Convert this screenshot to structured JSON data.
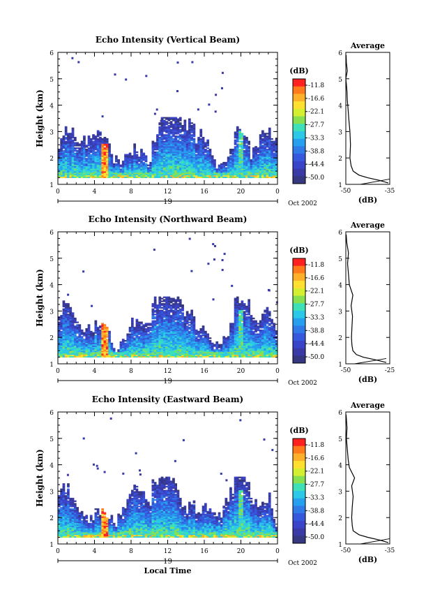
{
  "chart_data": [
    {
      "type": "heatmap",
      "title": "Echo Intensity (Vertical Beam)",
      "ylabel": "Height (km)",
      "xlabel": "",
      "xlim": [
        0,
        24
      ],
      "ylim": [
        1,
        6
      ],
      "x_ticks": [
        "0",
        "4",
        "8",
        "12",
        "16",
        "20",
        "0"
      ],
      "y_ticks": [
        "1",
        "2",
        "3",
        "4",
        "5",
        "6"
      ],
      "day_label": "19",
      "date_label": "Oct 2002",
      "colorbar": {
        "unit": "(dB)",
        "ticks": [
          "-11.8",
          "-16.6",
          "-22.1",
          "-27.7",
          "-33.3",
          "-38.8",
          "-44.4",
          "-50.0"
        ]
      },
      "cloud": {
        "base_km": 1.25,
        "max_top_km": 3.5
      },
      "profile": {
        "title": "Average",
        "xlabel": "(dB)",
        "xlim": [
          -50,
          -35
        ],
        "x_ticks": [
          "-50",
          "-35"
        ],
        "y_ticks": [
          "1",
          "2",
          "3",
          "4",
          "5",
          "6"
        ],
        "height_km": [
          1.05,
          1.15,
          1.25,
          1.35,
          1.5,
          1.7,
          2.0,
          2.5,
          3.0,
          3.5,
          3.8,
          4.2,
          4.5,
          4.8,
          5.0,
          5.3,
          5.6,
          5.9
        ],
        "db": [
          -35.5,
          -38.5,
          -42.5,
          -45.5,
          -47.5,
          -48.2,
          -48.6,
          -48.4,
          -48.6,
          -49.0,
          -49.2,
          -49.5,
          -49.6,
          -49.8,
          -50.0,
          -49.5,
          -49.8,
          -49.9
        ],
        "noise_line": [
          [
            -45,
            1.0
          ],
          [
            -35,
            1.2
          ]
        ]
      }
    },
    {
      "type": "heatmap",
      "title": "Echo Intensity (Northward Beam)",
      "ylabel": "Height (km)",
      "xlabel": "",
      "xlim": [
        0,
        24
      ],
      "ylim": [
        1,
        6
      ],
      "x_ticks": [
        "0",
        "4",
        "8",
        "12",
        "16",
        "20",
        "0"
      ],
      "y_ticks": [
        "1",
        "2",
        "3",
        "4",
        "5",
        "6"
      ],
      "day_label": "19",
      "date_label": "Oct 2002",
      "colorbar": {
        "unit": "(dB)",
        "ticks": [
          "-11.8",
          "-16.6",
          "-22.1",
          "-27.7",
          "-33.3",
          "-38.8",
          "-44.4",
          "-50.0"
        ]
      },
      "cloud": {
        "base_km": 1.25,
        "max_top_km": 3.5
      },
      "profile": {
        "title": "Average",
        "xlabel": "(dB)",
        "xlim": [
          -50,
          -25
        ],
        "x_ticks": [
          "-50",
          "-25"
        ],
        "y_ticks": [
          "1",
          "2",
          "3",
          "4",
          "5",
          "6"
        ],
        "height_km": [
          1.05,
          1.15,
          1.25,
          1.35,
          1.5,
          1.7,
          2.0,
          2.4,
          2.8,
          3.2,
          3.6,
          4.0,
          4.4,
          4.8,
          5.2,
          5.6,
          5.9
        ],
        "db": [
          -27.0,
          -33.0,
          -40.0,
          -44.0,
          -46.0,
          -46.5,
          -46.8,
          -46.5,
          -46.2,
          -47.0,
          -46.0,
          -48.0,
          -48.5,
          -49.0,
          -48.5,
          -49.5,
          -49.8
        ],
        "noise_line": [
          [
            -45,
            1.0
          ],
          [
            -27,
            1.2
          ]
        ]
      }
    },
    {
      "type": "heatmap",
      "title": "Echo Intensity (Eastward Beam)",
      "ylabel": "Height (km)",
      "xlabel": "Local Time",
      "xlim": [
        0,
        24
      ],
      "ylim": [
        1,
        6
      ],
      "x_ticks": [
        "0",
        "4",
        "8",
        "12",
        "16",
        "20",
        "0"
      ],
      "y_ticks": [
        "1",
        "2",
        "3",
        "4",
        "5",
        "6"
      ],
      "day_label": "19",
      "date_label": "Oct 2002",
      "colorbar": {
        "unit": "(dB)",
        "ticks": [
          "-11.8",
          "-16.6",
          "-22.1",
          "-27.7",
          "-33.3",
          "-38.8",
          "-44.4",
          "-50.0"
        ]
      },
      "cloud": {
        "base_km": 1.25,
        "max_top_km": 3.5
      },
      "profile": {
        "title": "Average",
        "xlabel": "(dB)",
        "xlim": [
          -50,
          -35
        ],
        "x_ticks": [
          "-50",
          "-35"
        ],
        "y_ticks": [
          "1",
          "2",
          "3",
          "4",
          "5",
          "6"
        ],
        "height_km": [
          1.05,
          1.15,
          1.25,
          1.35,
          1.5,
          1.7,
          2.0,
          2.4,
          2.8,
          3.2,
          3.5,
          3.9,
          4.2,
          4.6,
          5.0,
          5.4,
          5.9
        ],
        "db": [
          -35.5,
          -38.5,
          -42.5,
          -45.5,
          -47.5,
          -47.8,
          -48.0,
          -47.8,
          -47.5,
          -48.0,
          -47.0,
          -48.8,
          -49.2,
          -49.5,
          -49.8,
          -49.6,
          -49.9
        ],
        "noise_line": [
          [
            -45,
            1.0
          ],
          [
            -35,
            1.2
          ]
        ]
      }
    }
  ],
  "colors": {
    "scale": [
      "#ff2020",
      "#ff7a1a",
      "#ffb02a",
      "#ffe030",
      "#d4ee30",
      "#86e050",
      "#3ee0b8",
      "#2cc8e8",
      "#26a0ee",
      "#2f7ae6",
      "#3658dc",
      "#3a44c8",
      "#3a3aa6",
      "#353880"
    ]
  }
}
